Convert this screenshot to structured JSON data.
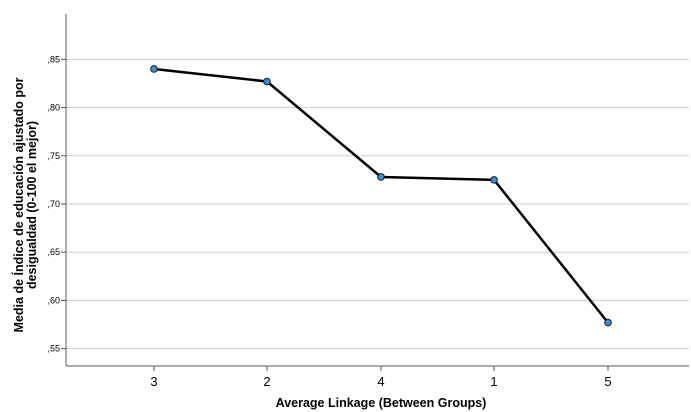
{
  "chart_data": {
    "type": "line",
    "title": "",
    "xlabel": "Average Linkage (Between Groups)",
    "ylabel_lines": [
      "Media de Índice de educación ajustado por",
      "desigualdad (0-100 el mejor)"
    ],
    "categories": [
      "3",
      "2",
      "4",
      "1",
      "5"
    ],
    "series": [
      {
        "values": [
          0.84,
          0.827,
          0.728,
          0.725,
          0.577
        ]
      }
    ],
    "ylim": [
      0.532,
      0.897
    ],
    "yticks": [
      0.55,
      0.6,
      0.65,
      0.7,
      0.75,
      0.8,
      0.85
    ],
    "ytick_labels": [
      ",55",
      ",60",
      ",65",
      ",70",
      ",75",
      ",80",
      ",85"
    ],
    "grid": true,
    "colors": {
      "line": "#000000",
      "marker_fill": "#3a8fd8",
      "marker_edge": "#1a1a1a",
      "grid": "#cfcfcf",
      "axis": "#5a5a5a"
    }
  }
}
